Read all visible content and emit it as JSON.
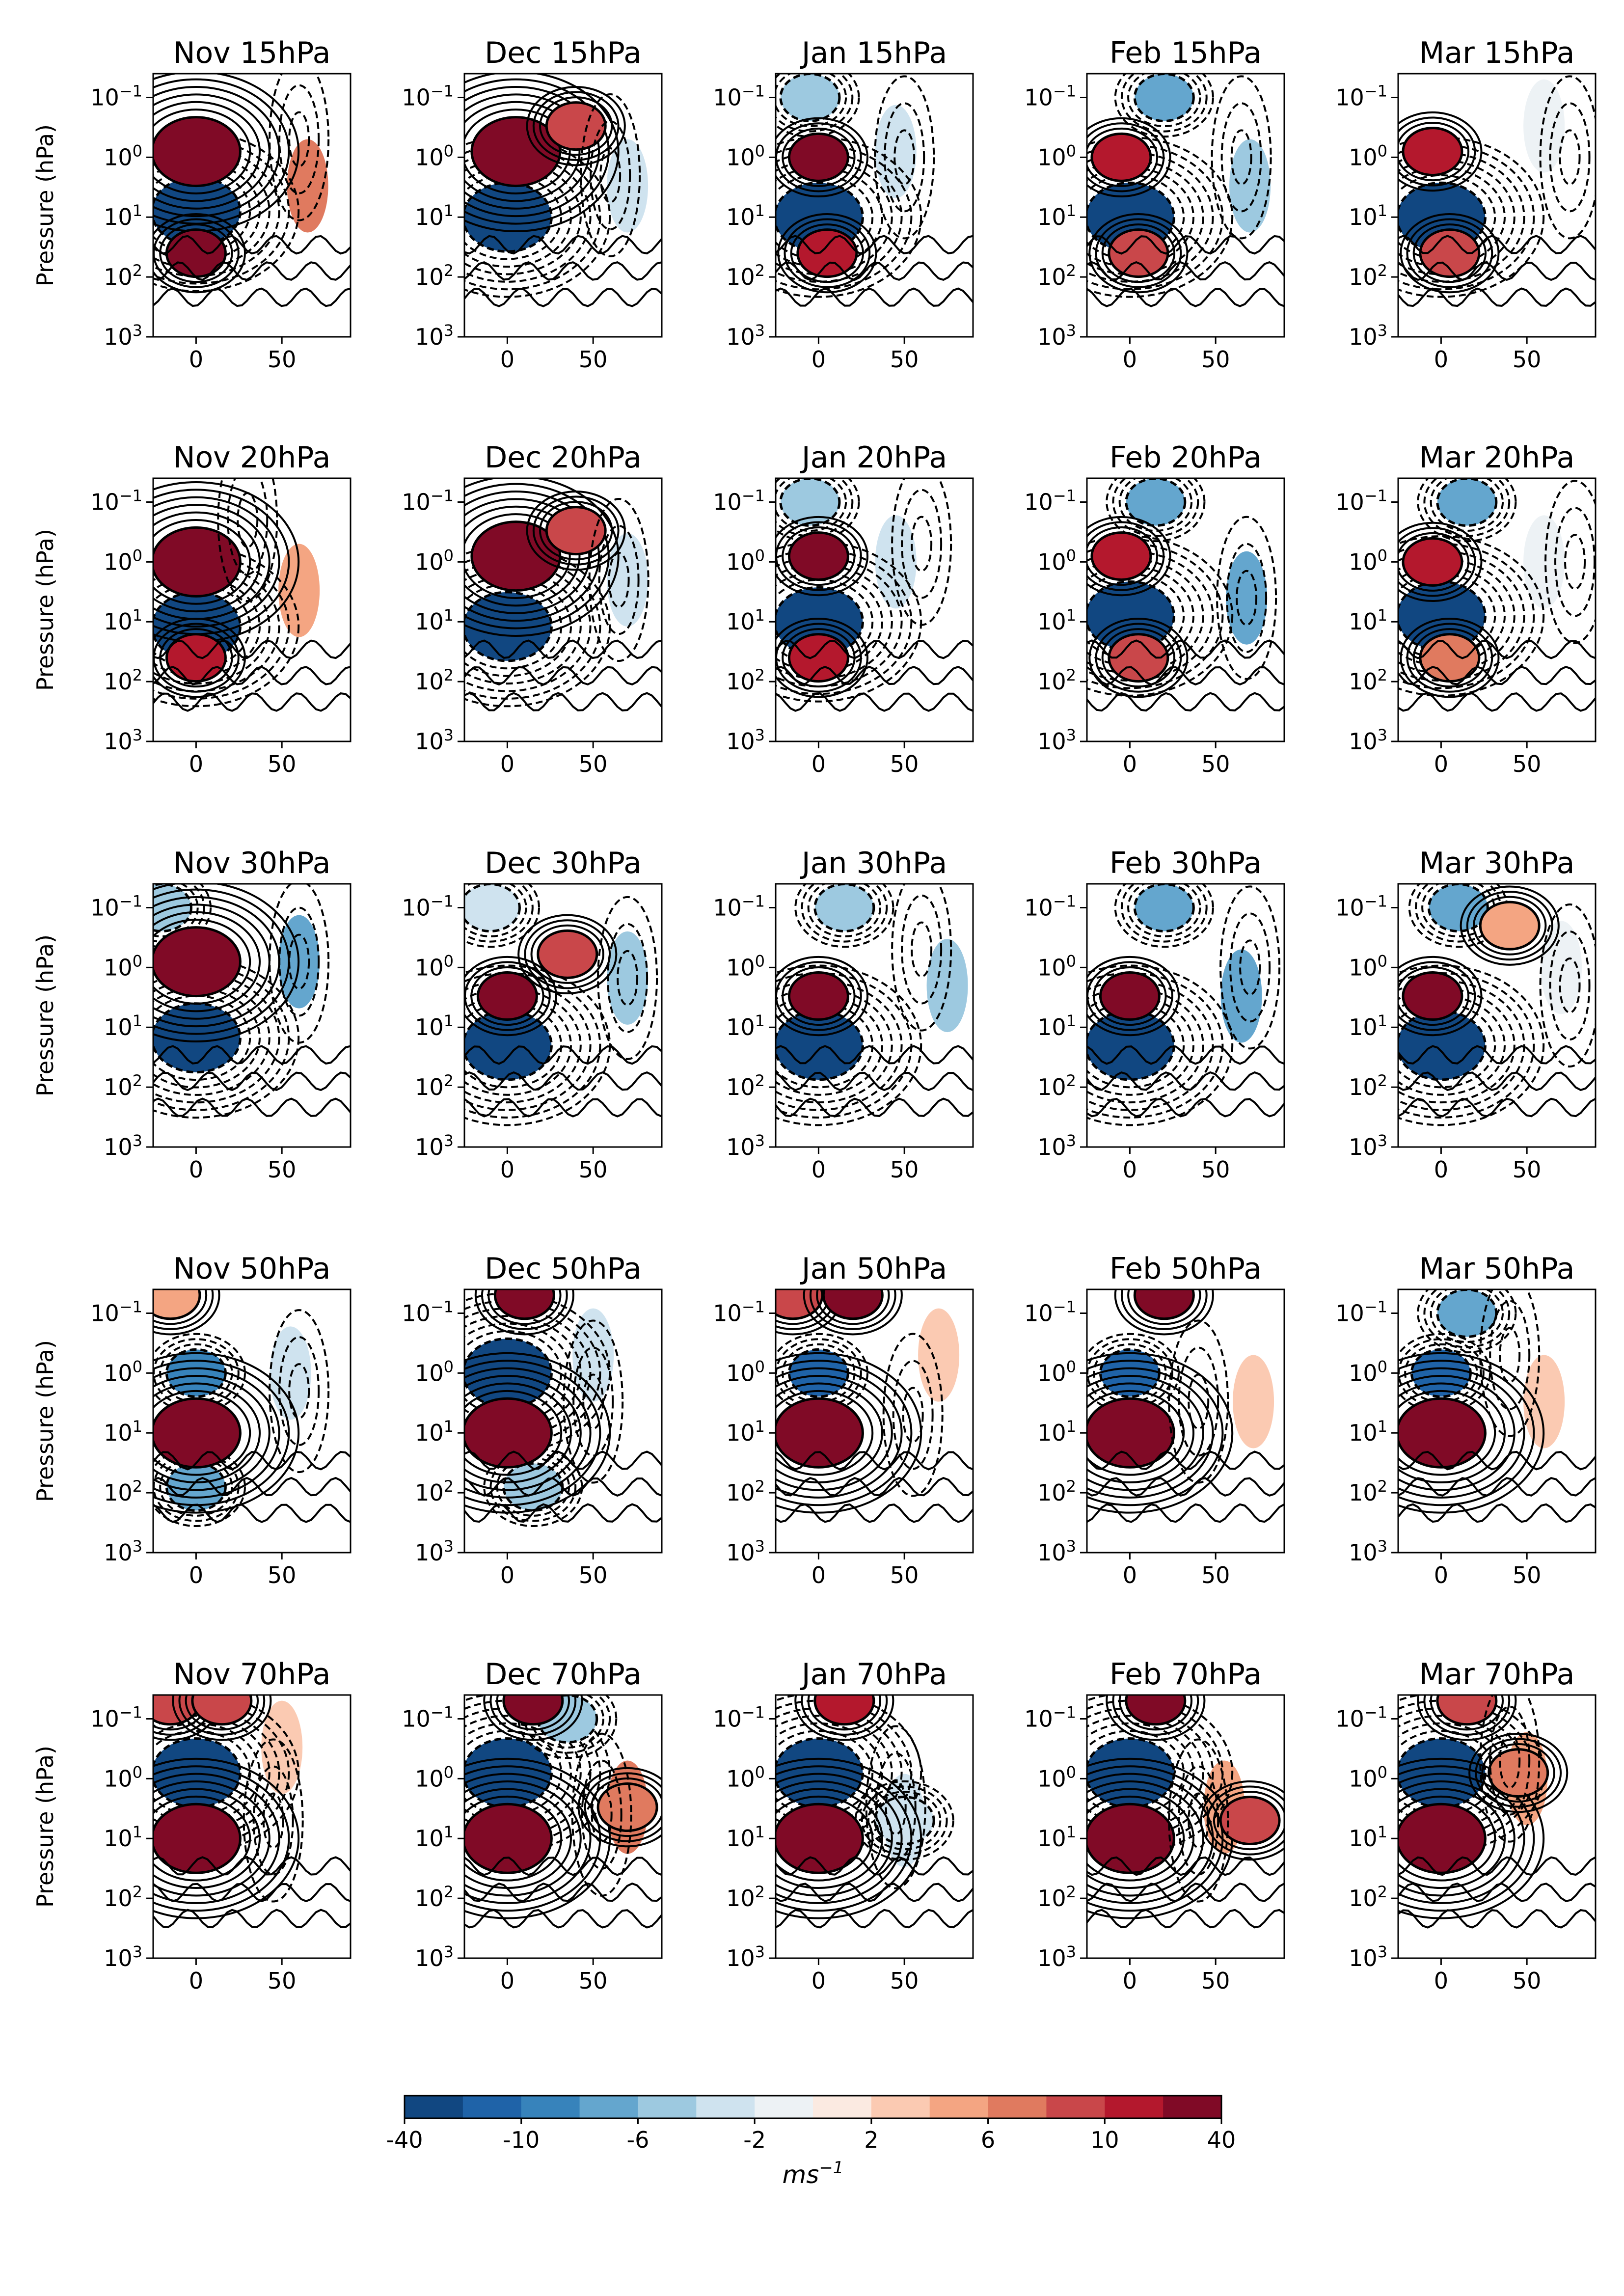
{
  "chart_data": {
    "type": "heatmap",
    "rows": [
      "15hPa",
      "20hPa",
      "30hPa",
      "50hPa",
      "70hPa"
    ],
    "cols": [
      "Nov",
      "Dec",
      "Jan",
      "Feb",
      "Mar"
    ],
    "panel_titles": [
      [
        "Nov 15hPa",
        "Dec 15hPa",
        "Jan 15hPa",
        "Feb 15hPa",
        "Mar 15hPa"
      ],
      [
        "Nov 20hPa",
        "Dec 20hPa",
        "Jan 20hPa",
        "Feb 20hPa",
        "Mar 20hPa"
      ],
      [
        "Nov 30hPa",
        "Dec 30hPa",
        "Jan 30hPa",
        "Feb 30hPa",
        "Mar 30hPa"
      ],
      [
        "Nov 50hPa",
        "Dec 50hPa",
        "Jan 50hPa",
        "Feb 50hPa",
        "Mar 50hPa"
      ],
      [
        "Nov 70hPa",
        "Dec 70hPa",
        "Jan 70hPa",
        "Feb 70hPa",
        "Mar 70hPa"
      ]
    ],
    "ylabel": "Pressure (hPa)",
    "xlabel": "",
    "y_scale": "log",
    "y_inverted": true,
    "ylim": [
      1000,
      0.04
    ],
    "xlim": [
      -25,
      90
    ],
    "x_ticks": [
      0,
      50
    ],
    "x_tick_labels": [
      "0",
      "50"
    ],
    "y_ticks": [
      0.1,
      1,
      10,
      100,
      1000
    ],
    "y_tick_base": "10",
    "y_tick_exponents": [
      "−1",
      "0",
      "1",
      "2",
      "3"
    ],
    "colorbar": {
      "levels": [
        -40,
        -20,
        -10,
        -8,
        -6,
        -4,
        -2,
        0,
        2,
        4,
        6,
        8,
        10,
        20,
        40
      ],
      "tick_labels": [
        "-40",
        "-10",
        "-6",
        "-2",
        "2",
        "6",
        "10",
        "40"
      ],
      "tick_indices": [
        0,
        2,
        4,
        6,
        8,
        10,
        12,
        14
      ],
      "colors": [
        "#114781",
        "#1f63a8",
        "#3783bb",
        "#64a6ce",
        "#9dc9e0",
        "#cfe3ef",
        "#edf2f5",
        "#fbeae1",
        "#fbcab2",
        "#f4a582",
        "#e07a5f",
        "#c9474a",
        "#b4182d",
        "#800a26"
      ],
      "unit": "ms",
      "unit_exponent": "−1"
    },
    "anomaly_centers_note_free": true,
    "panels": [
      [
        {
          "hot": [
            [
              0,
              0.8,
              40
            ],
            [
              0,
              40,
              20
            ]
          ],
          "cold": [
            [
              0,
              8,
              -40
            ]
          ],
          "weak": [
            [
              65,
              3,
              6
            ]
          ],
          "dash": [
            [
              60,
              0.5
            ]
          ]
        },
        {
          "hot": [
            [
              5,
              0.8,
              40
            ],
            [
              40,
              0.3,
              8
            ]
          ],
          "cold": [
            [
              0,
              10,
              -40
            ]
          ],
          "weak": [
            [
              70,
              3,
              -4
            ]
          ],
          "dash": [
            [
              60,
              2
            ]
          ]
        },
        {
          "hot": [
            [
              0,
              1,
              20
            ],
            [
              5,
              40,
              10
            ]
          ],
          "cold": [
            [
              0,
              10,
              -40
            ],
            [
              -5,
              0.1,
              -6
            ]
          ],
          "weak": [
            [
              45,
              0.8,
              -4
            ]
          ],
          "dash": [
            [
              50,
              1
            ]
          ]
        },
        {
          "hot": [
            [
              -5,
              1,
              15
            ],
            [
              5,
              40,
              8
            ]
          ],
          "cold": [
            [
              0,
              10,
              -40
            ],
            [
              20,
              0.1,
              -8
            ]
          ],
          "weak": [
            [
              70,
              3,
              -6
            ]
          ],
          "dash": [
            [
              65,
              1
            ]
          ]
        },
        {
          "hot": [
            [
              -5,
              0.8,
              15
            ],
            [
              5,
              40,
              8
            ]
          ],
          "cold": [
            [
              0,
              10,
              -40
            ]
          ],
          "weak": [
            [
              60,
              0.3,
              -2
            ]
          ],
          "dash": [
            [
              75,
              1
            ]
          ]
        }
      ],
      [
        {
          "hot": [
            [
              0,
              1,
              40
            ],
            [
              0,
              40,
              15
            ]
          ],
          "cold": [
            [
              0,
              12,
              -40
            ]
          ],
          "weak": [
            [
              60,
              3,
              4
            ]
          ],
          "dash": [
            [
              30,
              0.2
            ]
          ]
        },
        {
          "hot": [
            [
              5,
              0.8,
              40
            ],
            [
              40,
              0.3,
              8
            ]
          ],
          "cold": [
            [
              0,
              12,
              -40
            ]
          ],
          "weak": [
            [
              70,
              2,
              -4
            ]
          ],
          "dash": [
            [
              65,
              2
            ]
          ]
        },
        {
          "hot": [
            [
              0,
              0.8,
              20
            ],
            [
              0,
              40,
              10
            ]
          ],
          "cold": [
            [
              0,
              10,
              -40
            ],
            [
              -5,
              0.1,
              -6
            ]
          ],
          "weak": [
            [
              45,
              1,
              -4
            ]
          ],
          "dash": [
            [
              60,
              0.5
            ]
          ]
        },
        {
          "hot": [
            [
              -5,
              0.8,
              15
            ],
            [
              5,
              40,
              8
            ]
          ],
          "cold": [
            [
              0,
              8,
              -40
            ],
            [
              15,
              0.1,
              -8
            ]
          ],
          "weak": [
            [
              68,
              4,
              -8
            ]
          ],
          "dash": [
            [
              68,
              4
            ]
          ]
        },
        {
          "hot": [
            [
              -5,
              1,
              15
            ],
            [
              5,
              40,
              6
            ]
          ],
          "cold": [
            [
              0,
              8,
              -40
            ],
            [
              15,
              0.1,
              -8
            ]
          ],
          "weak": [
            [
              60,
              1,
              -2
            ]
          ],
          "dash": [
            [
              78,
              1
            ]
          ]
        }
      ],
      [
        {
          "hot": [
            [
              0,
              0.8,
              40
            ]
          ],
          "cold": [
            [
              0,
              15,
              -40
            ],
            [
              -20,
              0.1,
              -6
            ]
          ],
          "weak": [
            [
              60,
              0.8,
              -8
            ]
          ],
          "dash": [
            [
              60,
              0.8
            ]
          ]
        },
        {
          "hot": [
            [
              0,
              3,
              20
            ],
            [
              35,
              0.6,
              8
            ]
          ],
          "cold": [
            [
              0,
              20,
              -40
            ],
            [
              -10,
              0.1,
              -4
            ]
          ],
          "weak": [
            [
              70,
              1.5,
              -6
            ]
          ],
          "dash": [
            [
              70,
              1.5
            ]
          ]
        },
        {
          "hot": [
            [
              0,
              3,
              20
            ]
          ],
          "cold": [
            [
              0,
              20,
              -40
            ],
            [
              15,
              0.1,
              -6
            ]
          ],
          "weak": [
            [
              75,
              2,
              -6
            ]
          ],
          "dash": [
            [
              60,
              0.5
            ]
          ]
        },
        {
          "hot": [
            [
              0,
              3,
              20
            ]
          ],
          "cold": [
            [
              0,
              20,
              -40
            ],
            [
              20,
              0.1,
              -8
            ]
          ],
          "weak": [
            [
              65,
              3,
              -8
            ]
          ],
          "dash": [
            [
              70,
              1
            ]
          ]
        },
        {
          "hot": [
            [
              -5,
              3,
              20
            ],
            [
              40,
              0.2,
              4
            ]
          ],
          "cold": [
            [
              0,
              20,
              -40
            ],
            [
              10,
              0.1,
              -8
            ]
          ],
          "weak": [
            [
              70,
              1,
              -2
            ]
          ],
          "dash": [
            [
              75,
              2
            ]
          ]
        }
      ],
      [
        {
          "hot": [
            [
              0,
              10,
              40
            ],
            [
              -15,
              0.05,
              4
            ]
          ],
          "cold": [
            [
              0,
              1,
              -10
            ],
            [
              0,
              80,
              -8
            ]
          ],
          "weak": [
            [
              55,
              1,
              -4
            ]
          ],
          "dash": [
            [
              60,
              2
            ]
          ]
        },
        {
          "hot": [
            [
              0,
              10,
              40
            ],
            [
              10,
              0.05,
              20
            ]
          ],
          "cold": [
            [
              0,
              1,
              -40
            ],
            [
              15,
              80,
              -6
            ]
          ],
          "weak": [
            [
              50,
              0.5,
              -4
            ]
          ],
          "dash": [
            [
              50,
              3
            ]
          ]
        },
        {
          "hot": [
            [
              0,
              10,
              40
            ],
            [
              -15,
              0.05,
              8
            ],
            [
              20,
              0.05,
              20
            ]
          ],
          "cold": [
            [
              0,
              1,
              -20
            ]
          ],
          "weak": [
            [
              70,
              0.5,
              2
            ]
          ],
          "dash": [
            [
              55,
              5
            ]
          ]
        },
        {
          "hot": [
            [
              0,
              10,
              40
            ],
            [
              20,
              0.05,
              20
            ]
          ],
          "cold": [
            [
              0,
              1,
              -20
            ]
          ],
          "weak": [
            [
              72,
              3,
              2
            ]
          ],
          "dash": [
            [
              40,
              3
            ]
          ]
        },
        {
          "hot": [
            [
              0,
              10,
              40
            ]
          ],
          "cold": [
            [
              0,
              1,
              -20
            ],
            [
              15,
              0.1,
              -8
            ]
          ],
          "weak": [
            [
              60,
              3,
              2
            ]
          ],
          "dash": [
            [
              40,
              0.5
            ]
          ]
        }
      ],
      [
        {
          "hot": [
            [
              0,
              10,
              40
            ],
            [
              -15,
              0.05,
              8
            ],
            [
              15,
              0.05,
              8
            ]
          ],
          "cold": [
            [
              0,
              0.8,
              -40
            ]
          ],
          "weak": [
            [
              50,
              0.3,
              2
            ]
          ],
          "dash": [
            [
              45,
              5
            ]
          ]
        },
        {
          "hot": [
            [
              0,
              10,
              40
            ],
            [
              15,
              0.05,
              20
            ],
            [
              70,
              3,
              6
            ]
          ],
          "cold": [
            [
              0,
              0.8,
              -40
            ],
            [
              35,
              0.1,
              -6
            ]
          ],
          "weak": [
            [
              70,
              3,
              6
            ]
          ],
          "dash": [
            [
              55,
              4
            ]
          ]
        },
        {
          "hot": [
            [
              0,
              10,
              40
            ],
            [
              15,
              0.05,
              10
            ]
          ],
          "cold": [
            [
              0,
              0.8,
              -40
            ],
            [
              50,
              5,
              -4
            ]
          ],
          "weak": [
            [
              50,
              5,
              -4
            ]
          ],
          "dash": [
            [
              45,
              3
            ]
          ]
        },
        {
          "hot": [
            [
              0,
              10,
              40
            ],
            [
              15,
              0.05,
              20
            ],
            [
              70,
              5,
              8
            ]
          ],
          "cold": [
            [
              0,
              0.8,
              -40
            ]
          ],
          "weak": [
            [
              55,
              3,
              4
            ]
          ],
          "dash": [
            [
              40,
              5
            ]
          ]
        },
        {
          "hot": [
            [
              0,
              10,
              40
            ],
            [
              15,
              0.05,
              8
            ],
            [
              45,
              0.8,
              6
            ]
          ],
          "cold": [
            [
              0,
              0.8,
              -40
            ]
          ],
          "weak": [
            [
              50,
              1,
              4
            ]
          ],
          "dash": [
            [
              40,
              0.5
            ]
          ]
        }
      ]
    ]
  }
}
